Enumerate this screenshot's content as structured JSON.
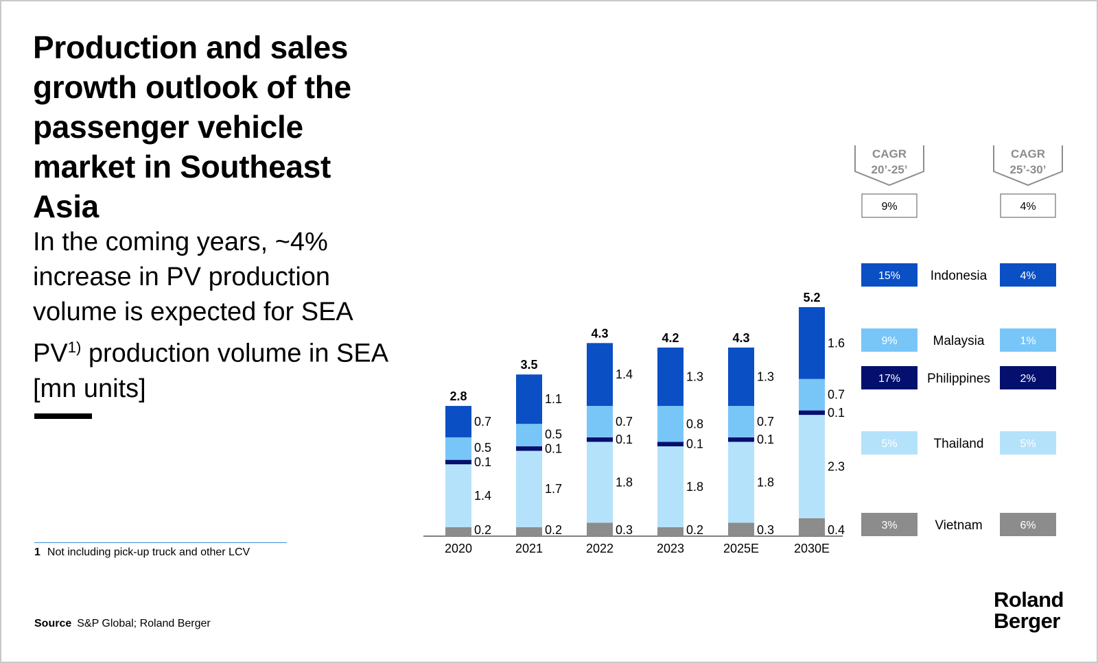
{
  "title": "Production and sales growth outlook of the passenger vehicle market in Southeast Asia",
  "subtitle": {
    "before": "In the coming years, ~4% increase in PV production volume is expected for SEA PV",
    "sup": "1)",
    "after": " production volume in SEA [mn units]"
  },
  "footnote": {
    "number": "1",
    "text": "Not including pick-up truck and other LCV"
  },
  "source": {
    "label": "Source",
    "text": "S&P Global; Roland Berger"
  },
  "logo": {
    "line1": "Roland",
    "line2": "Berger"
  },
  "colors": {
    "Indonesia": "#0a4fc4",
    "Malaysia": "#78c6f8",
    "Philippines": "#05106e",
    "Thailand": "#b4e2fb",
    "Vietnam": "#8c8c8c",
    "cagr_header": "#8c8c8c"
  },
  "chart_data": {
    "type": "bar",
    "stacked": true,
    "unit": "mn units",
    "categories": [
      "2020",
      "2021",
      "2022",
      "2023",
      "2025E",
      "2030E"
    ],
    "totals": [
      "2.8",
      "3.5",
      "4.3",
      "4.2",
      "4.3",
      "5.2"
    ],
    "series": [
      {
        "name": "Vietnam",
        "values": [
          0.2,
          0.2,
          0.3,
          0.2,
          0.3,
          0.4
        ],
        "labels": [
          "0.2",
          "0.2",
          "0.3",
          "0.2",
          "0.3",
          "0.4"
        ]
      },
      {
        "name": "Thailand",
        "values": [
          1.4,
          1.7,
          1.8,
          1.8,
          1.8,
          2.3
        ],
        "labels": [
          "1.4",
          "1.7",
          "1.8",
          "1.8",
          "1.8",
          "2.3"
        ]
      },
      {
        "name": "Philippines",
        "values": [
          0.1,
          0.1,
          0.1,
          0.1,
          0.1,
          0.1
        ],
        "labels": [
          "0.1",
          "0.1",
          "0.1",
          "0.1",
          "0.1",
          "0.1"
        ]
      },
      {
        "name": "Malaysia",
        "values": [
          0.5,
          0.5,
          0.7,
          0.8,
          0.7,
          0.7
        ],
        "labels": [
          "0.5",
          "0.5",
          "0.7",
          "0.8",
          "0.7",
          "0.7"
        ]
      },
      {
        "name": "Indonesia",
        "values": [
          0.7,
          1.1,
          1.4,
          1.3,
          1.3,
          1.6
        ],
        "labels": [
          "0.7",
          "1.1",
          "1.4",
          "1.3",
          "1.3",
          "1.6"
        ]
      }
    ],
    "cagr": {
      "columns": [
        {
          "header_line1": "CAGR",
          "header_line2": "20’-25’",
          "total": "9%"
        },
        {
          "header_line1": "CAGR",
          "header_line2": "25’-30’",
          "total": "4%"
        }
      ],
      "rows": [
        {
          "country": "Indonesia",
          "values": [
            "15%",
            "4%"
          ]
        },
        {
          "country": "Malaysia",
          "values": [
            "9%",
            "1%"
          ]
        },
        {
          "country": "Philippines",
          "values": [
            "17%",
            "2%"
          ]
        },
        {
          "country": "Thailand",
          "values": [
            "5%",
            "5%"
          ]
        },
        {
          "country": "Vietnam",
          "values": [
            "3%",
            "6%"
          ]
        }
      ]
    }
  }
}
